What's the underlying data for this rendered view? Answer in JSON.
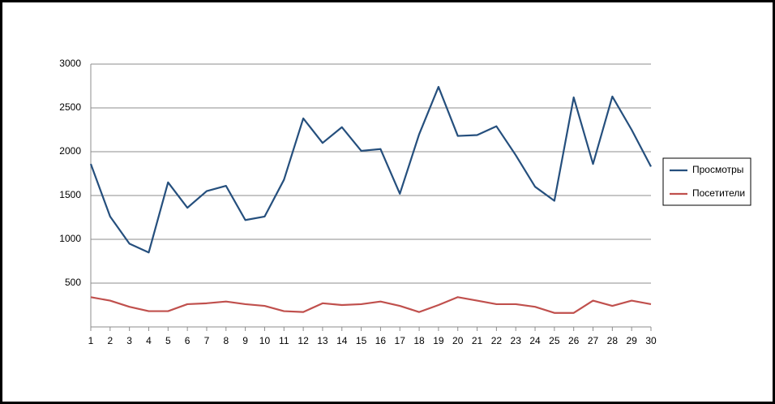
{
  "chart_data": {
    "type": "line",
    "x": [
      1,
      2,
      3,
      4,
      5,
      6,
      7,
      8,
      9,
      10,
      11,
      12,
      13,
      14,
      15,
      16,
      17,
      18,
      19,
      20,
      21,
      22,
      23,
      24,
      25,
      26,
      27,
      28,
      29,
      30
    ],
    "xlim": [
      1,
      30
    ],
    "xticks": [
      1,
      2,
      3,
      4,
      5,
      6,
      7,
      8,
      9,
      10,
      11,
      12,
      13,
      14,
      15,
      16,
      17,
      18,
      19,
      20,
      21,
      22,
      23,
      24,
      25,
      26,
      27,
      28,
      29,
      30
    ],
    "ylim": [
      0,
      3000
    ],
    "yticks": [
      500,
      1000,
      1500,
      2000,
      2500,
      3000
    ],
    "grid": true,
    "legend": "right",
    "series": [
      {
        "name": "Просмотры",
        "color": "#254f7d",
        "values": [
          1860,
          1260,
          950,
          850,
          1650,
          1360,
          1550,
          1610,
          1220,
          1260,
          1680,
          2380,
          2100,
          2280,
          2010,
          2030,
          1520,
          2200,
          2740,
          2180,
          2190,
          2290,
          1960,
          1600,
          1440,
          2620,
          1860,
          2630,
          2250,
          1830
        ]
      },
      {
        "name": "Посетители",
        "color": "#c0504d",
        "values": [
          340,
          300,
          230,
          180,
          180,
          260,
          270,
          290,
          260,
          240,
          180,
          170,
          270,
          250,
          260,
          290,
          240,
          170,
          250,
          340,
          300,
          260,
          260,
          230,
          160,
          160,
          300,
          240,
          300,
          260
        ]
      }
    ]
  }
}
